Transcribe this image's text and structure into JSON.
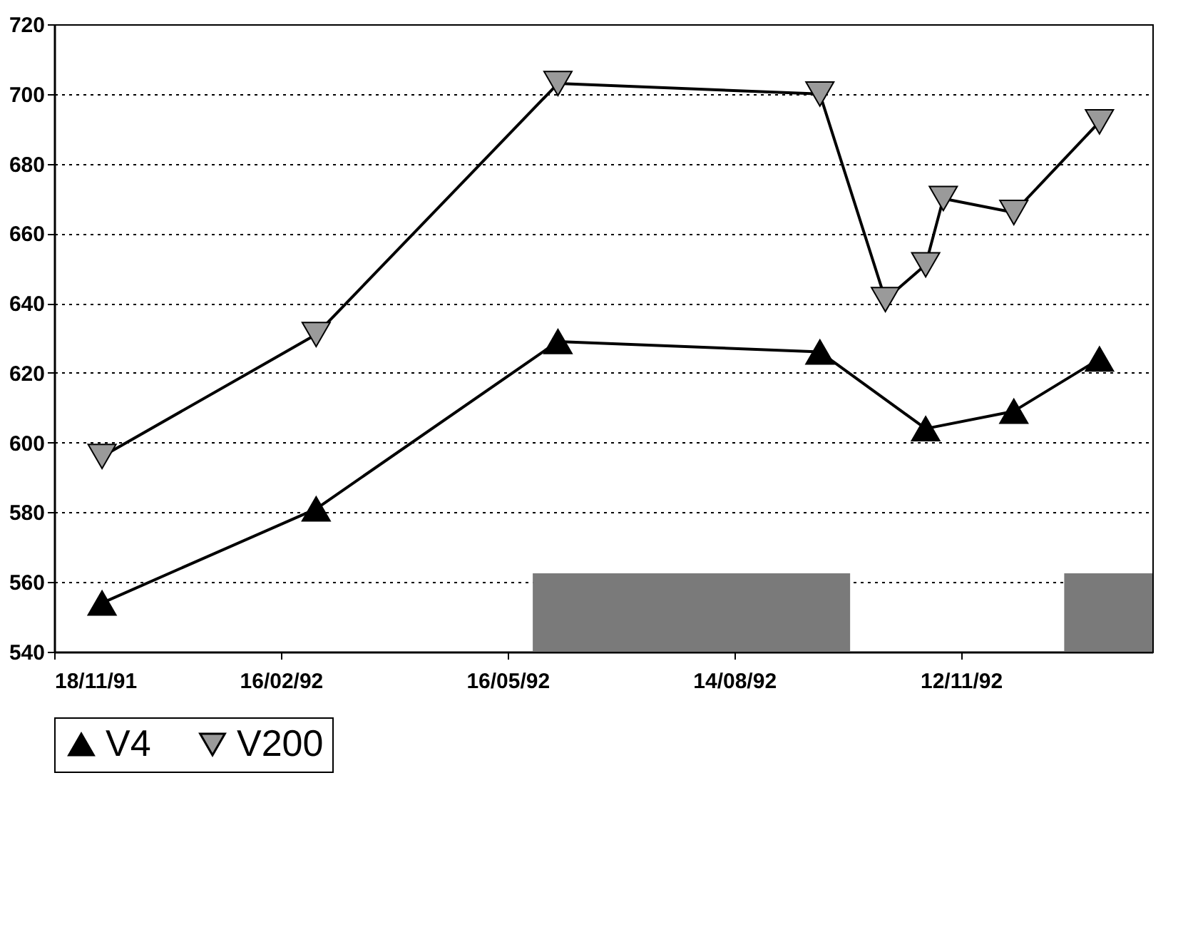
{
  "chart_data": {
    "type": "line",
    "series": [
      {
        "name": "V4",
        "color": "#000000",
        "marker": "triangle",
        "x": [
          "1991-12-07",
          "1992-03-01",
          "1992-06-05",
          "1992-09-17",
          "1992-10-29",
          "1992-12-03",
          "1993-01-06"
        ],
        "values": [
          554,
          581,
          629,
          626,
          604,
          609,
          624
        ]
      },
      {
        "name": "V200",
        "color": "#9a9a9a",
        "marker": "triangle-down",
        "x": [
          "1991-12-07",
          "1992-03-01",
          "1992-06-05",
          "1992-09-17",
          "1992-10-13",
          "1992-10-29",
          "1992-11-05",
          "1992-12-03",
          "1993-01-06"
        ],
        "values": [
          596,
          631,
          703,
          700,
          641,
          651,
          670,
          666,
          692
        ]
      }
    ],
    "xlim": [
      "1991-11-18",
      "1993-01-27"
    ],
    "xticks": [
      {
        "value": "1991-11-18",
        "label": "18/11/91"
      },
      {
        "value": "1992-02-16",
        "label": "16/02/92"
      },
      {
        "value": "1992-05-16",
        "label": "16/05/92"
      },
      {
        "value": "1992-08-14",
        "label": "14/08/92"
      },
      {
        "value": "1992-11-12",
        "label": "12/11/92"
      }
    ],
    "ylim": [
      540,
      720
    ],
    "yticks": [
      540,
      560,
      580,
      600,
      620,
      640,
      660,
      680,
      700,
      720
    ],
    "bands": [
      {
        "axis": "x",
        "from": "1992-05-26",
        "to": "1992-09-29",
        "color": "#7a7a7a"
      },
      {
        "axis": "x",
        "from": "1992-12-23",
        "to": "1993-01-27",
        "color": "#7a7a7a"
      }
    ],
    "grid": "y",
    "line_style": "solid",
    "legend": "bottom"
  }
}
